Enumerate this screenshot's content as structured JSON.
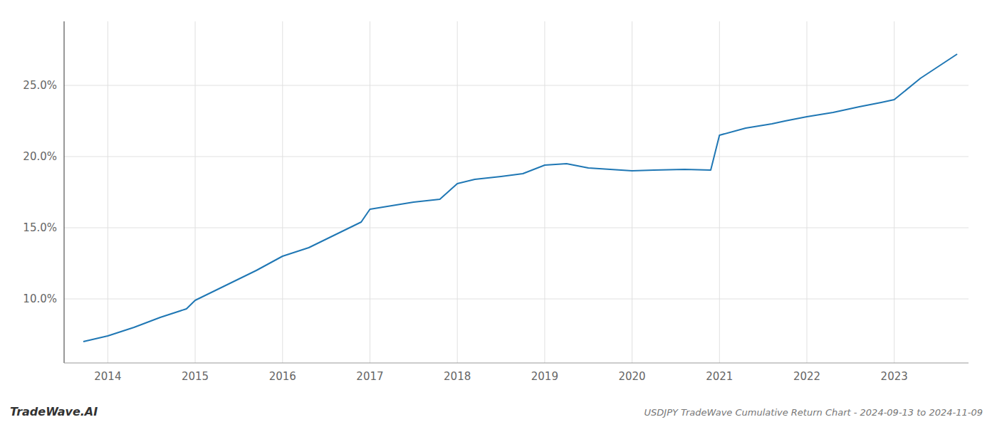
{
  "chart_data": {
    "type": "line",
    "title": "USDJPY TradeWave Cumulative Return Chart - 2024-09-13 to 2024-11-09",
    "annotations": [
      "TradeWave.AI"
    ],
    "color": "#1f77b4",
    "grid": true,
    "x": [
      2013.72,
      2014.0,
      2014.3,
      2014.6,
      2014.9,
      2015.0,
      2015.3,
      2015.7,
      2016.0,
      2016.3,
      2016.6,
      2016.9,
      2017.0,
      2017.3,
      2017.5,
      2017.8,
      2018.0,
      2018.2,
      2018.5,
      2018.75,
      2019.0,
      2019.25,
      2019.5,
      2019.75,
      2020.0,
      2020.25,
      2020.6,
      2020.9,
      2021.0,
      2021.3,
      2021.6,
      2021.75,
      2022.0,
      2022.3,
      2022.6,
      2022.85,
      2023.0,
      2023.3,
      2023.72
    ],
    "values": [
      7.0,
      7.4,
      8.0,
      8.7,
      9.3,
      9.9,
      10.8,
      12.0,
      13.0,
      13.6,
      14.5,
      15.4,
      16.3,
      16.6,
      16.8,
      17.0,
      18.1,
      18.4,
      18.6,
      18.8,
      19.4,
      19.5,
      19.2,
      19.1,
      19.0,
      19.05,
      19.1,
      19.05,
      21.5,
      22.0,
      22.3,
      22.5,
      22.8,
      23.1,
      23.5,
      23.8,
      24.0,
      25.5,
      27.2
    ],
    "xlim": [
      2013.5,
      2023.85
    ],
    "ylim": [
      5.5,
      29.5
    ],
    "xticks": [
      2014,
      2015,
      2016,
      2017,
      2018,
      2019,
      2020,
      2021,
      2022,
      2023
    ],
    "yticks": [
      {
        "value": 10.0,
        "label": "10.0%"
      },
      {
        "value": 15.0,
        "label": "15.0%"
      },
      {
        "value": 20.0,
        "label": "20.0%"
      },
      {
        "value": 25.0,
        "label": "25.0%"
      }
    ]
  }
}
